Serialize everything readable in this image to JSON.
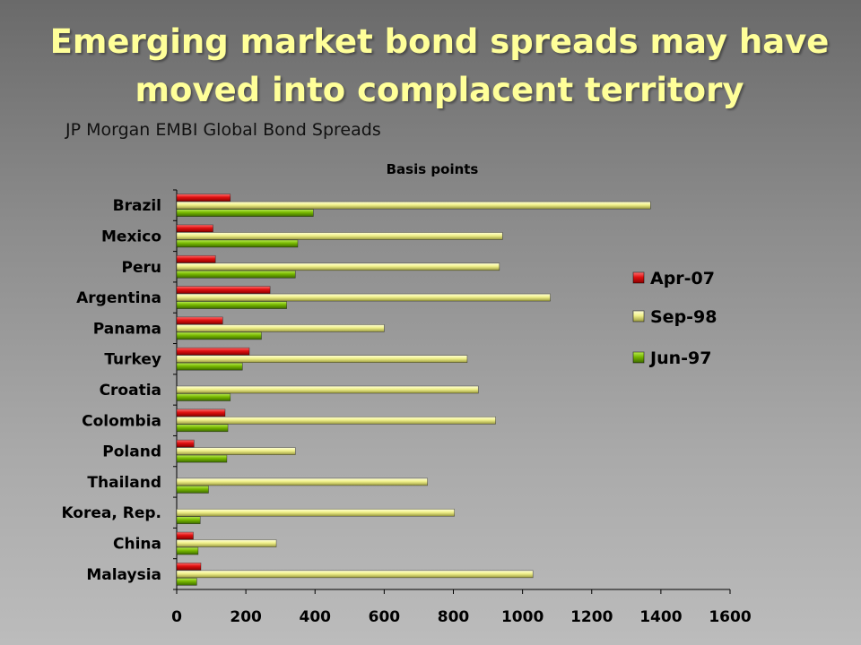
{
  "title_line1": "Emerging market bond spreads may have",
  "title_line2": "moved into complacent territory",
  "subtitle": "JP Morgan EMBI Global Bond Spreads",
  "chart_data": {
    "type": "bar",
    "orientation": "horizontal",
    "unit_label": "Basis points",
    "categories": [
      "Brazil",
      "Mexico",
      "Peru",
      "Argentina",
      "Panama",
      "Turkey",
      "Croatia",
      "Colombia",
      "Poland",
      "Thailand",
      "Korea, Rep.",
      "China",
      "Malaysia"
    ],
    "series": [
      {
        "name": "Apr-07",
        "color": "#dd1111",
        "values": [
          155,
          105,
          112,
          270,
          133,
          210,
          0,
          140,
          50,
          0,
          0,
          48,
          70
        ]
      },
      {
        "name": "Sep-98",
        "color": "#f0f08a",
        "values": [
          1370,
          942,
          933,
          1080,
          600,
          840,
          872,
          922,
          343,
          725,
          803,
          288,
          1030
        ]
      },
      {
        "name": "Jun-97",
        "color": "#77b800",
        "values": [
          395,
          350,
          343,
          318,
          245,
          190,
          155,
          148,
          145,
          92,
          68,
          62,
          58
        ]
      }
    ],
    "xlim": [
      0,
      1600
    ],
    "xticks": [
      0,
      200,
      400,
      600,
      800,
      1000,
      1200,
      1400,
      1600
    ],
    "grid": false,
    "legend_position": "right"
  }
}
